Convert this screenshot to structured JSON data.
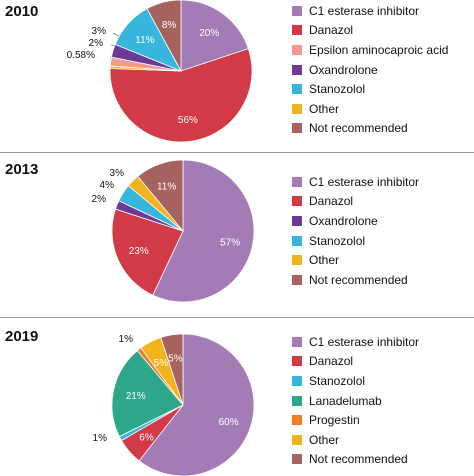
{
  "colors": {
    "C1 esterase inhibitor": "#a47cb5",
    "Danazol": "#d33a47",
    "Epsilon aminocaproic acid": "#f39a8e",
    "Oxandrolone": "#6a3a96",
    "Stanozolol": "#36b6dc",
    "Other": "#f1b41f",
    "Not recommended": "#a5625f",
    "Lanadelumab": "#2ea689",
    "Progestin": "#ef7f20"
  },
  "chart_data": [
    {
      "type": "pie",
      "title": "2010",
      "legend": [
        "C1 esterase inhibitor",
        "Danazol",
        "Epsilon aminocaproic acid",
        "Oxandrolone",
        "Stanozolol",
        "Other",
        "Not recommended"
      ],
      "slices": [
        {
          "name": "C1 esterase inhibitor",
          "value": 20,
          "label": "20%"
        },
        {
          "name": "Danazol",
          "value": 56,
          "label": "56%"
        },
        {
          "name": "Other",
          "value": 0.58,
          "label": "0.58%"
        },
        {
          "name": "Epsilon aminocaproic acid",
          "value": 2,
          "label": "2%"
        },
        {
          "name": "Oxandrolone",
          "value": 3,
          "label": "3%"
        },
        {
          "name": "Stanozolol",
          "value": 11,
          "label": "11%"
        },
        {
          "name": "Not recommended",
          "value": 8,
          "label": "8%"
        }
      ]
    },
    {
      "type": "pie",
      "title": "2013",
      "legend": [
        "C1 esterase inhibitor",
        "Danazol",
        "Oxandrolone",
        "Stanozolol",
        "Other",
        "Not recommended"
      ],
      "slices": [
        {
          "name": "C1 esterase inhibitor",
          "value": 57,
          "label": "57%"
        },
        {
          "name": "Danazol",
          "value": 23,
          "label": "23%"
        },
        {
          "name": "Oxandrolone",
          "value": 2,
          "label": "2%"
        },
        {
          "name": "Stanozolol",
          "value": 4,
          "label": "4%"
        },
        {
          "name": "Other",
          "value": 3,
          "label": "3%"
        },
        {
          "name": "Not recommended",
          "value": 11,
          "label": "11%"
        }
      ]
    },
    {
      "type": "pie",
      "title": "2019",
      "legend": [
        "C1 esterase inhibitor",
        "Danazol",
        "Stanozolol",
        "Lanadelumab",
        "Progestin",
        "Other",
        "Not recommended"
      ],
      "slices": [
        {
          "name": "C1 esterase inhibitor",
          "value": 60,
          "label": "60%"
        },
        {
          "name": "Danazol",
          "value": 6,
          "label": "6%"
        },
        {
          "name": "Stanozolol",
          "value": 1,
          "label": "1%"
        },
        {
          "name": "Lanadelumab",
          "value": 21,
          "label": "21%"
        },
        {
          "name": "Progestin",
          "value": 1,
          "label": "1%"
        },
        {
          "name": "Other",
          "value": 5,
          "label": "5%"
        },
        {
          "name": "Not recommended",
          "value": 5,
          "label": "5%"
        }
      ]
    }
  ]
}
